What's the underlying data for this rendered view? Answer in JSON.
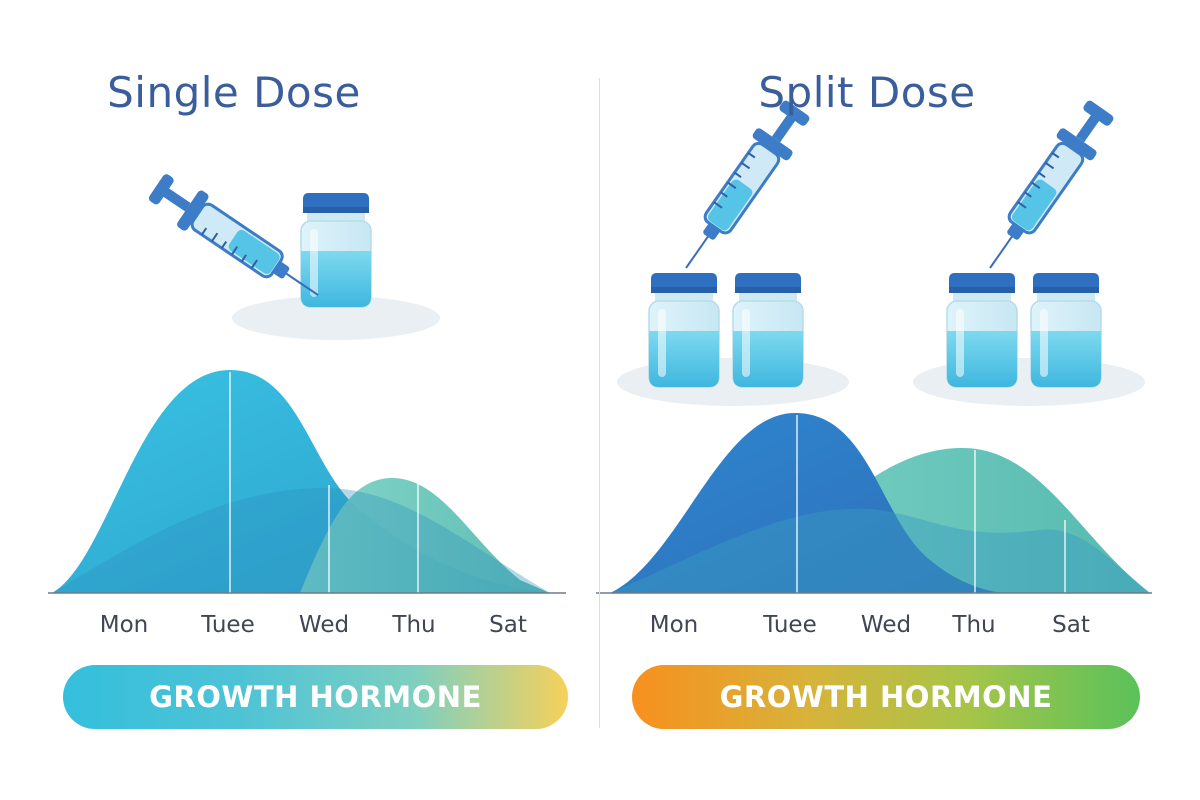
{
  "left_panel": {
    "title": "Single Dose",
    "days": [
      "Mon",
      "Tuee",
      "Wed",
      "Thu",
      "Sat"
    ],
    "banner": "GROWTH HORMONE"
  },
  "right_panel": {
    "title": "Split Dose",
    "days": [
      "Mon",
      "Tuee",
      "Wed",
      "Thu",
      "Sat"
    ],
    "banner": "GROWTH HORMONE"
  },
  "colors": {
    "title": "#3a5d9c",
    "curve_light_blue": "#3bb8dc",
    "curve_teal": "#6ec9be",
    "curve_dark_blue": "#2f7fc8",
    "vial_liquid": "#4ec8e6",
    "vial_cap": "#2f6fc0"
  }
}
